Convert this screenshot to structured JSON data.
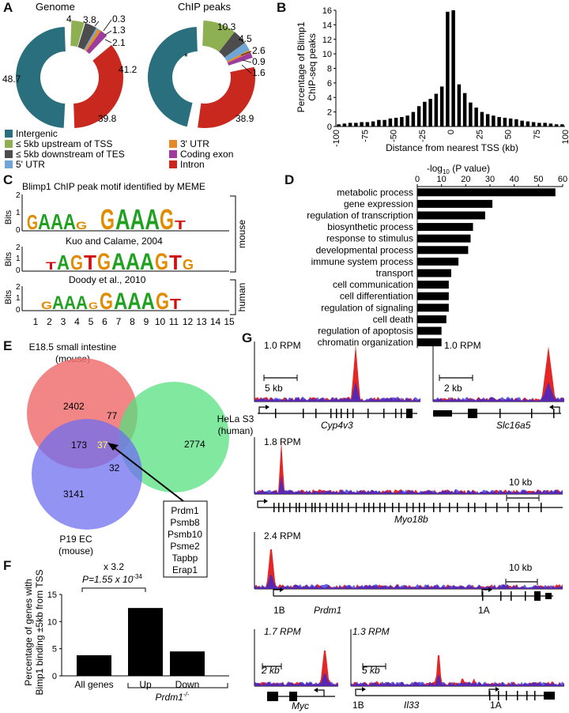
{
  "panel_letters": {
    "a": "A",
    "b": "B",
    "c": "C",
    "d": "D",
    "e": "E",
    "f": "F",
    "g": "G"
  },
  "colors": {
    "intergenic": "#2a6f7d",
    "upstream": "#8faf53",
    "downstream": "#4d4d4d",
    "utr5": "#6fa6d6",
    "utr3": "#e38a2c",
    "coding": "#9c3c9c",
    "intron": "#c8281d",
    "venn_red": "#f07070",
    "venn_green": "#55e07f",
    "venn_blue": "#6f6ff0",
    "track_red": "#e01010",
    "track_blue": "#2a2ae0"
  },
  "panel_a": {
    "genome_title": "Genome",
    "chip_title": "ChIP peaks",
    "genome_values": [
      "48.7",
      "4",
      "3.8",
      "0.3",
      "1.3",
      "2.1",
      "41.2",
      "39.8"
    ],
    "chip_values": [
      "10.3",
      "4.5",
      "2.6",
      "0.9",
      "1.6",
      "38.9"
    ],
    "star": "*",
    "legend": [
      "Intergenic",
      "≤ 5kb upstream of TSS",
      "≤ 5kb downstream of TES",
      "5' UTR",
      "3' UTR",
      "Coding exon",
      "Intron"
    ]
  },
  "panel_b": {
    "ylabel_line1": "Percentage of Blimp1",
    "ylabel_line2": "ChIP-seq peaks",
    "xlabel": "Distance from nearest TSS (kb)"
  },
  "panel_c": {
    "title1": "Blimp1 ChIP peak motif identified by MEME",
    "title2": "Kuo and Calame, 2004",
    "title3": "Doody et al., 2010",
    "ylabel": "Bits",
    "mouse": "mouse",
    "human": "human",
    "positions": [
      "1",
      "2",
      "3",
      "4",
      "5",
      "6",
      "7",
      "8",
      "9",
      "10",
      "11",
      "12",
      "13",
      "14",
      "15"
    ],
    "logo1": "GAAAG GAAAGT",
    "logo2": "TAGTGAAAGTG",
    "logo3": "GAAAG GAAAGT"
  },
  "chart_data": [
    {
      "type": "bar",
      "title": "",
      "xlabel": "Distance from nearest TSS (kb)",
      "ylabel": "Percentage of Blimp1 ChIP-seq peaks",
      "xlim": [
        -100,
        100
      ],
      "ylim": [
        0,
        16
      ],
      "xticks": [
        "-100",
        "-75",
        "-50",
        "-25",
        "0",
        "25",
        "50",
        "75",
        "100"
      ],
      "yticks": [
        "0",
        "2",
        "4",
        "6",
        "8",
        "10",
        "12",
        "14",
        "16"
      ],
      "x": [
        -97.5,
        -92.5,
        -87.5,
        -82.5,
        -77.5,
        -72.5,
        -67.5,
        -62.5,
        -57.5,
        -52.5,
        -47.5,
        -42.5,
        -37.5,
        -32.5,
        -27.5,
        -22.5,
        -17.5,
        -12.5,
        -7.5,
        -2.5,
        2.5,
        7.5,
        12.5,
        17.5,
        22.5,
        27.5,
        32.5,
        37.5,
        42.5,
        47.5,
        52.5,
        57.5,
        62.5,
        67.5,
        72.5,
        77.5,
        82.5,
        87.5,
        92.5,
        97.5
      ],
      "values": [
        0.3,
        0.4,
        0.5,
        0.5,
        0.6,
        0.6,
        0.7,
        0.9,
        0.9,
        1.1,
        1.2,
        1.3,
        1.5,
        2.0,
        2.8,
        3.4,
        3.8,
        4.5,
        5.5,
        15.8,
        16.0,
        5.8,
        4.6,
        3.3,
        2.6,
        2.0,
        1.7,
        1.5,
        1.3,
        1.2,
        1.1,
        1.0,
        0.8,
        0.7,
        0.6,
        0.5,
        0.5,
        0.4,
        0.3,
        0.3
      ]
    },
    {
      "type": "bar",
      "title": "",
      "xlabel": "-log10 (P value)",
      "xlim": [
        0,
        60
      ],
      "xticks": [
        "0",
        "10",
        "20",
        "30",
        "40",
        "50",
        "60"
      ],
      "categories": [
        "metabolic process",
        "gene expression",
        "regulation of transcription",
        "biosynthetic process",
        "response to stimulus",
        "developmental process",
        "immune system process",
        "transport",
        "cell communication",
        "cell differentiation",
        "regulation of signaling",
        "cell death",
        "regulation of apoptosis",
        "chromatin organization"
      ],
      "values": [
        57,
        31,
        28,
        23,
        22,
        21,
        17,
        14,
        13,
        13,
        13,
        12,
        10,
        10
      ]
    },
    {
      "type": "bar",
      "title": "",
      "ylabel": "Percentage of genes with Bimp1 binding ±5kb from TSS",
      "ylim": [
        0,
        15
      ],
      "yticks": [
        "0",
        "5",
        "10",
        "15"
      ],
      "categories": [
        "All genes",
        "Up",
        "Down"
      ],
      "values": [
        3.8,
        12.5,
        4.5
      ]
    }
  ],
  "panel_d": {
    "xlabel_prefix": "-log",
    "xlabel_sub": "10",
    "xlabel_suffix": " (P value)"
  },
  "panel_e": {
    "set1_line1": "E18.5 small intestine",
    "set1_line2": "(mouse)",
    "set2_line1": "HeLa S3",
    "set2_line2": "(human)",
    "set3_line1": "P19 EC",
    "set3_line2": "(mouse)",
    "n_red": "2402",
    "n_green": "2774",
    "n_blue": "3141",
    "n_rg": "77",
    "n_rb": "173",
    "n_gb": "32",
    "n_all": "37",
    "genes": [
      "Prdm1",
      "Psmb8",
      "Psmb10",
      "Psme2",
      "Tapbp",
      "Erap1"
    ]
  },
  "panel_f": {
    "ylabel_line1": "Percentage of genes with",
    "ylabel_line2": "Bimp1 binding ±5kb from TSS",
    "fold": "x 3.2",
    "pval": "P=1.55 x 10",
    "pval_exp": "-34",
    "group": "Prdm1",
    "group_sup": "-/-"
  },
  "panel_g": {
    "tracks": [
      {
        "rpm": "1.0 RPM",
        "scale": "5 kb",
        "gene": "Cyp4v3"
      },
      {
        "rpm": "1.0 RPM",
        "scale": "2 kb",
        "gene": "Slc16a5"
      },
      {
        "rpm": "1.8 RPM",
        "scale": "10 kb",
        "gene": "Myo18b"
      },
      {
        "rpm": "2.4 RPM",
        "scale": "10 kb",
        "gene": "Prdm1"
      },
      {
        "rpm": "1.7 RPM",
        "scale": "2 kb",
        "gene": "Myc"
      },
      {
        "rpm": "1.3 RPM",
        "scale": "5 kb",
        "gene": "Il33"
      }
    ],
    "promoter_1b": "1B",
    "promoter_1a": "1A"
  }
}
